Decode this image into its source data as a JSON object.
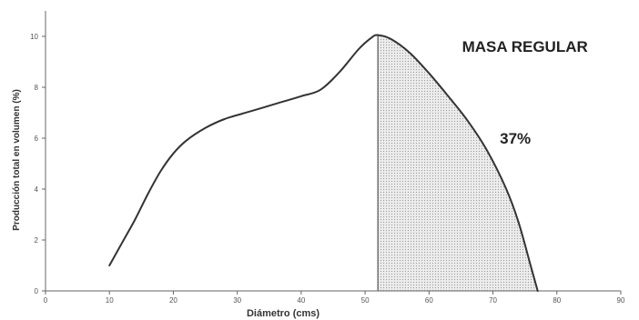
{
  "chart_data": {
    "type": "line",
    "xlabel": "Diámetro (cms)",
    "ylabel": "Producción total en volumen (%)",
    "xlim": [
      0,
      90
    ],
    "ylim": [
      0,
      11
    ],
    "xticks": [
      0,
      10,
      20,
      30,
      40,
      50,
      60,
      70,
      80,
      90
    ],
    "yticks": [
      0,
      2,
      4,
      6,
      8,
      10
    ],
    "grid": false,
    "series": [
      {
        "x": [
          10,
          12,
          14,
          16,
          18,
          20,
          22,
          25,
          28,
          32,
          36,
          40,
          43,
          46,
          49,
          51,
          52,
          54,
          57,
          60,
          63,
          66,
          69,
          72,
          74,
          76,
          77
        ],
        "y": [
          1.0,
          1.9,
          2.8,
          3.8,
          4.7,
          5.4,
          5.9,
          6.4,
          6.75,
          7.05,
          7.35,
          7.65,
          7.9,
          8.6,
          9.5,
          9.95,
          10.05,
          9.9,
          9.35,
          8.55,
          7.65,
          6.7,
          5.55,
          4.05,
          2.7,
          0.9,
          0.0
        ],
        "color": "#333333"
      }
    ],
    "shaded_region": {
      "from_x": 52,
      "to_x": 77,
      "fill": "#e6e6e6"
    },
    "annotations": [
      {
        "text": "MASA REGULAR",
        "x": 75,
        "y": 9.6
      },
      {
        "text": "37%",
        "x": 73.5,
        "y": 6.0
      }
    ]
  }
}
